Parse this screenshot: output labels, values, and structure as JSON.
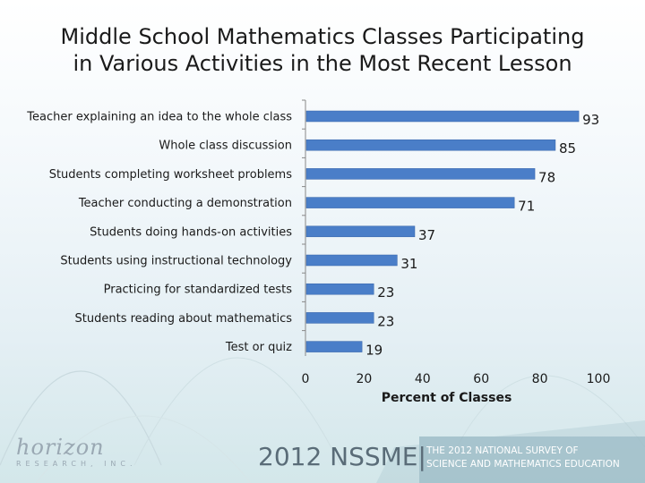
{
  "title_lines": [
    "Middle School Mathematics Classes Participating",
    "in Various Activities in the Most Recent Lesson"
  ],
  "footer": {
    "logo_word": "horizon",
    "logo_sub": "RESEARCH, INC.",
    "survey_year": "2012 NSSME|",
    "survey_name_lines": [
      "THE 2012 NATIONAL SURVEY OF",
      "SCIENCE AND MATHEMATICS EDUCATION"
    ]
  },
  "colors": {
    "bar": "#4a7ec8",
    "bar_edge": "#3563a8",
    "axis": "#888888"
  },
  "chart_data": {
    "type": "bar",
    "orientation": "horizontal",
    "categories": [
      "Teacher explaining an idea to the whole class",
      "Whole class discussion",
      "Students completing worksheet problems",
      "Teacher conducting a demonstration",
      "Students doing hands-on activities",
      "Students using instructional technology",
      "Practicing for standardized tests",
      "Students reading about mathematics",
      "Test or quiz"
    ],
    "values": [
      93,
      85,
      78,
      71,
      37,
      31,
      23,
      23,
      19
    ],
    "data_labels": [
      "93",
      "85",
      "78",
      "71",
      "37",
      "31",
      "23",
      "23",
      "19"
    ],
    "xlabel": "Percent of Classes",
    "xlim": [
      0,
      100
    ],
    "xticks": [
      0,
      20,
      40,
      60,
      80,
      100
    ],
    "xtick_labels": [
      "0",
      "20",
      "40",
      "60",
      "80",
      "100"
    ],
    "grid": false,
    "legend": "none"
  }
}
